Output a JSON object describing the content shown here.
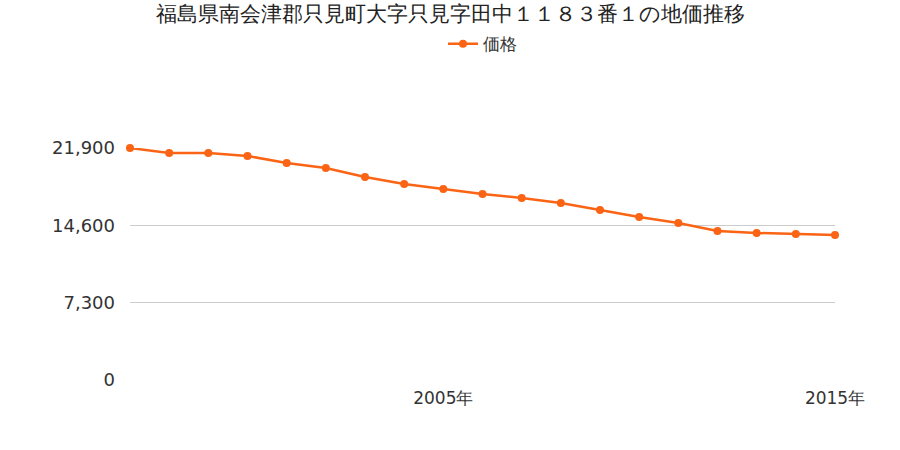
{
  "chart_data": {
    "type": "line",
    "title": "福島県南会津郡只見町大字只見字田中１１８３番１の地価推移",
    "categories": [
      null,
      null,
      null,
      null,
      null,
      null,
      null,
      null,
      "2005年",
      null,
      null,
      null,
      null,
      null,
      null,
      null,
      null,
      null,
      "2015年"
    ],
    "series": [
      {
        "name": "価格",
        "color": "#fa6414",
        "marker": "circle",
        "values": [
          21900,
          21430,
          21430,
          21150,
          20490,
          20020,
          19170,
          18500,
          18030,
          17560,
          17180,
          16710,
          16050,
          15390,
          14820,
          14070,
          13880,
          13780,
          13690
        ]
      }
    ],
    "ylim": [
      0,
      21900
    ],
    "yticks": [
      0,
      {
        "value": 7300,
        "label": "7,300"
      },
      {
        "value": 14600,
        "label": "14,600"
      },
      {
        "value": 21900,
        "label": "21,900"
      }
    ],
    "grid": true,
    "legend": "top"
  }
}
